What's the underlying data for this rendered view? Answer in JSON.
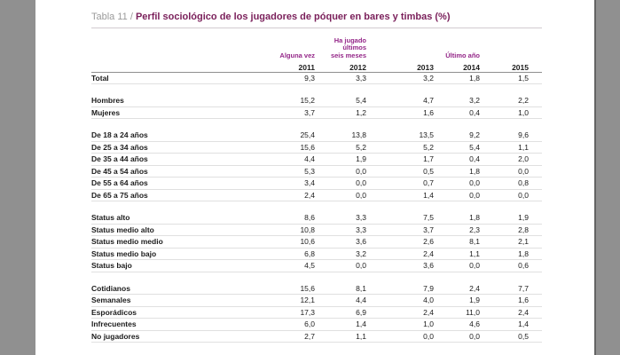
{
  "colors": {
    "surround": "#909090",
    "page_bg": "#ffffff",
    "accent": "#942688",
    "title_color": "#7a1f5a",
    "title_prefix": "#9b9b9b",
    "title_line": "#d2cbd0",
    "header_line": "#8f8f8f",
    "row_line": "#e0e0e0"
  },
  "title": {
    "prefix": "Tabla 11 / ",
    "text": "Perfil sociológico de los jugadores de póquer en bares y timbas (%)"
  },
  "table": {
    "columns": [
      {
        "group": "Alguna vez",
        "year": "2011"
      },
      {
        "group": "Ha jugado últimos\nseis meses",
        "year": "2012"
      },
      {
        "group": "",
        "year": "2013"
      },
      {
        "group": "Último año",
        "year": "2014"
      },
      {
        "group": "",
        "year": "2015"
      }
    ],
    "sections": [
      {
        "name": "total",
        "rows": [
          {
            "label": "Total",
            "values": [
              "9,3",
              "3,3",
              "3,2",
              "1,8",
              "1,5"
            ]
          }
        ]
      },
      {
        "name": "sexo",
        "rows": [
          {
            "label": "Hombres",
            "values": [
              "15,2",
              "5,4",
              "4,7",
              "3,2",
              "2,2"
            ]
          },
          {
            "label": "Mujeres",
            "values": [
              "3,7",
              "1,2",
              "1,6",
              "0,4",
              "1,0"
            ]
          }
        ]
      },
      {
        "name": "edad",
        "rows": [
          {
            "label": "De 18 a 24 años",
            "values": [
              "25,4",
              "13,8",
              "13,5",
              "9,2",
              "9,6"
            ]
          },
          {
            "label": "De 25 a 34 años",
            "values": [
              "15,6",
              "5,2",
              "5,2",
              "5,4",
              "1,1"
            ]
          },
          {
            "label": "De 35 a 44 años",
            "values": [
              "4,4",
              "1,9",
              "1,7",
              "0,4",
              "2,0"
            ]
          },
          {
            "label": "De 45 a 54 años",
            "values": [
              "5,3",
              "0,0",
              "0,5",
              "1,8",
              "0,0"
            ]
          },
          {
            "label": "De 55 a 64 años",
            "values": [
              "3,4",
              "0,0",
              "0,7",
              "0,0",
              "0,8"
            ]
          },
          {
            "label": "De 65 a 75 años",
            "values": [
              "2,4",
              "0,0",
              "1,4",
              "0,0",
              "0,0"
            ]
          }
        ]
      },
      {
        "name": "status",
        "rows": [
          {
            "label": "Status alto",
            "values": [
              "8,6",
              "3,3",
              "7,5",
              "1,8",
              "1,9"
            ]
          },
          {
            "label": "Status medio alto",
            "values": [
              "10,8",
              "3,3",
              "3,7",
              "2,3",
              "2,8"
            ]
          },
          {
            "label": "Status medio medio",
            "values": [
              "10,6",
              "3,6",
              "2,6",
              "8,1",
              "2,1"
            ]
          },
          {
            "label": "Status medio bajo",
            "values": [
              "6,8",
              "3,2",
              "2,4",
              "1,1",
              "1,8"
            ]
          },
          {
            "label": "Status bajo",
            "values": [
              "4,5",
              "0,0",
              "3,6",
              "0,0",
              "0,6"
            ]
          }
        ]
      },
      {
        "name": "frecuencia",
        "rows": [
          {
            "label": "Cotidianos",
            "values": [
              "15,6",
              "8,1",
              "7,9",
              "2,4",
              "7,7"
            ]
          },
          {
            "label": "Semanales",
            "values": [
              "12,1",
              "4,4",
              "4,0",
              "1,9",
              "1,6"
            ]
          },
          {
            "label": "Esporádicos",
            "values": [
              "17,3",
              "6,9",
              "2,4",
              "11,0",
              "2,4"
            ]
          },
          {
            "label": "Infrecuentes",
            "values": [
              "6,0",
              "1,4",
              "1,0",
              "4,6",
              "1,4"
            ]
          },
          {
            "label": "No jugadores",
            "values": [
              "2,7",
              "1,1",
              "0,0",
              "0,0",
              "0,5"
            ]
          }
        ]
      }
    ]
  }
}
